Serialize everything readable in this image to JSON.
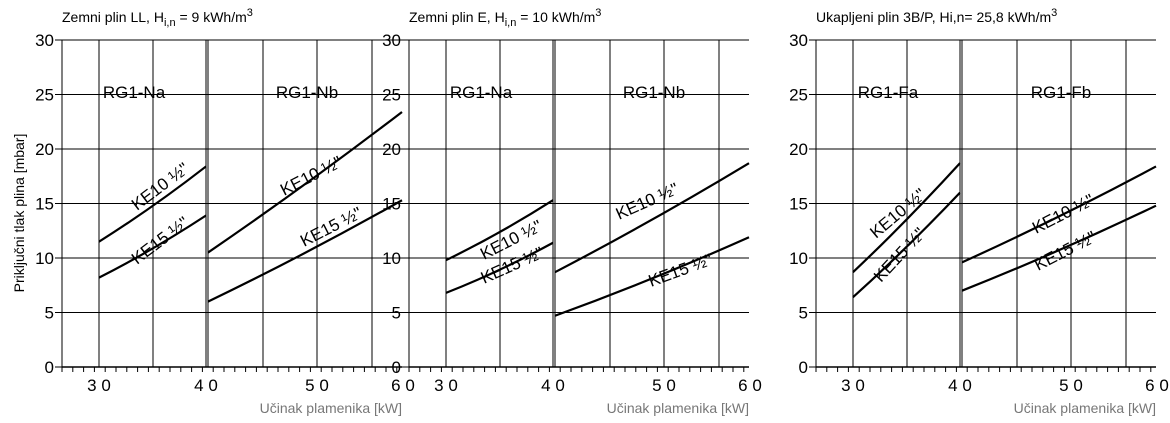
{
  "ylabel": "Priključni tlak plina [mbar]",
  "charts": [
    {
      "title_main": "Zemni plin LL, H",
      "title_sub": "i,n",
      "title_rest": " = 9 kWh/m",
      "title_sup": "3",
      "xlabel": "Učinak plamenika [kW]",
      "ylim": [
        0,
        30
      ],
      "yticks": [
        "0",
        "5",
        "10",
        "15",
        "20",
        "25",
        "30"
      ],
      "xticks": [
        "3 0",
        "4 0",
        "5 0",
        "6 0"
      ],
      "left_panel_label": "RG1-Na",
      "right_panel_label": "RG1-Nb",
      "series": [
        {
          "panel": "left",
          "name": "KE10 ½\"",
          "x": [
            30,
            40
          ],
          "y": [
            11.5,
            18.4
          ]
        },
        {
          "panel": "left",
          "name": "KE15 ½\"",
          "x": [
            30,
            40
          ],
          "y": [
            8.2,
            13.9
          ]
        },
        {
          "panel": "right",
          "name": "KE10 ½\"",
          "x": [
            40,
            62
          ],
          "y": [
            10.5,
            23.4
          ]
        },
        {
          "panel": "right",
          "name": "KE15 ½\"",
          "x": [
            40,
            62
          ],
          "y": [
            6.0,
            15.3
          ]
        }
      ]
    },
    {
      "title_main": "Zemni plin E, H",
      "title_sub": "i,n",
      "title_rest": " = 10 kWh/m",
      "title_sup": "3",
      "xlabel": "Učinak plamenika [kW]",
      "ylim": [
        0,
        30
      ],
      "yticks": [
        "0",
        "5",
        "10",
        "15",
        "20",
        "25",
        "30"
      ],
      "xticks": [
        "3 0",
        "4 0",
        "5 0",
        "6 0"
      ],
      "left_panel_label": "RG1-Na",
      "right_panel_label": "RG1-Nb",
      "series": [
        {
          "panel": "left",
          "name": "KE10 ½\"",
          "x": [
            30,
            40
          ],
          "y": [
            9.8,
            15.3
          ]
        },
        {
          "panel": "left",
          "name": "KE15 ½\"",
          "x": [
            30,
            40
          ],
          "y": [
            6.8,
            11.4
          ]
        },
        {
          "panel": "right",
          "name": "KE10 ½\"",
          "x": [
            40,
            62
          ],
          "y": [
            8.7,
            18.7
          ]
        },
        {
          "panel": "right",
          "name": "KE15 ½\"",
          "x": [
            40,
            62
          ],
          "y": [
            4.7,
            11.9
          ]
        }
      ]
    },
    {
      "title_main": "Ukapljeni plin 3B/P, Hi,n= 25,8 kWh/m",
      "title_sub": "",
      "title_rest": "",
      "title_sup": "3",
      "xlabel": "Učinak plamenika [kW]",
      "ylim": [
        0,
        30
      ],
      "yticks": [
        "0",
        "5",
        "10",
        "15",
        "20",
        "25",
        "30"
      ],
      "xticks": [
        "3 0",
        "4 0",
        "5 0",
        "6 0"
      ],
      "left_panel_label": "RG1-Fa",
      "right_panel_label": "RG1-Fb",
      "series": [
        {
          "panel": "left",
          "name": "KE10 ½\"",
          "x": [
            30,
            40
          ],
          "y": [
            8.7,
            18.7
          ]
        },
        {
          "panel": "left",
          "name": "KE15 ½\"",
          "x": [
            30,
            40
          ],
          "y": [
            6.4,
            16.0
          ]
        },
        {
          "panel": "right",
          "name": "KE10 ½\"",
          "x": [
            40,
            62
          ],
          "y": [
            9.6,
            18.4
          ]
        },
        {
          "panel": "right",
          "name": "KE15 ½\"",
          "x": [
            40,
            62
          ],
          "y": [
            7.0,
            14.8
          ]
        }
      ]
    }
  ]
}
